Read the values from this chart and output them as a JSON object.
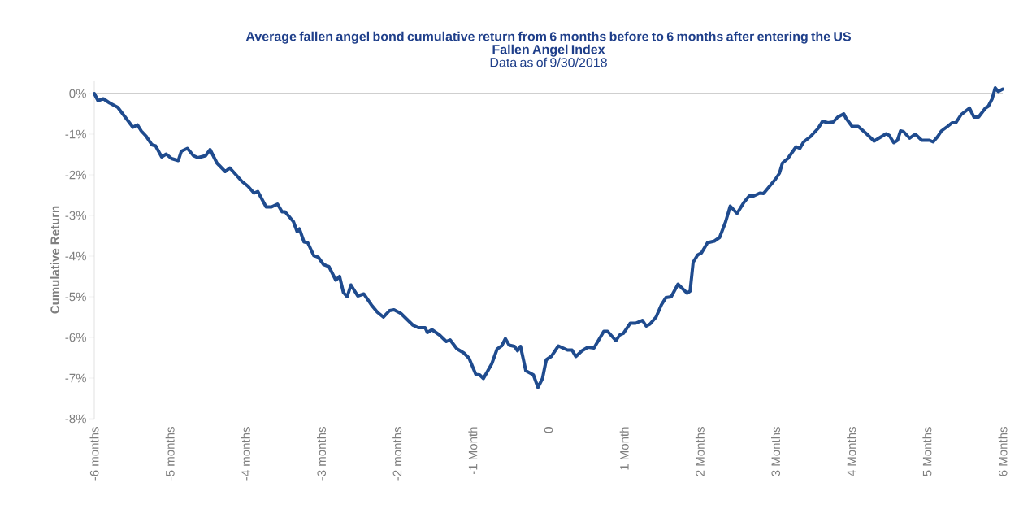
{
  "chart_data": {
    "type": "line",
    "title": "Average fallen angel bond cumulative return from 6 months before to 6 months after entering the US Fallen Angel Index",
    "subtitle": "Data as of 9/30/2018",
    "ylabel": "Cumulative Return",
    "xlim": [
      -6,
      6
    ],
    "ylim": [
      -8,
      0.3
    ],
    "xticks": [
      {
        "value": -6,
        "label": "-6 months"
      },
      {
        "value": -5,
        "label": "-5 months"
      },
      {
        "value": -4,
        "label": "-4 months"
      },
      {
        "value": -3,
        "label": "-3 months"
      },
      {
        "value": -2,
        "label": "-2 months"
      },
      {
        "value": -1,
        "label": "-1 Month"
      },
      0,
      {
        "value": 1,
        "label": "1 Month"
      },
      {
        "value": 2,
        "label": "2 Months"
      },
      {
        "value": 3,
        "label": "3 Months"
      },
      {
        "value": 4,
        "label": "4 Months"
      },
      {
        "value": 5,
        "label": "5 Months"
      },
      {
        "value": 6,
        "label": "6 Months"
      }
    ],
    "yticks": [
      {
        "value": 0,
        "label": "0%"
      },
      {
        "value": -1,
        "label": "-1%"
      },
      {
        "value": -2,
        "label": "-2%"
      },
      {
        "value": -3,
        "label": "-3%"
      },
      {
        "value": -4,
        "label": "-4%"
      },
      {
        "value": -5,
        "label": "-5%"
      },
      {
        "value": -6,
        "label": "-6%"
      },
      {
        "value": -7,
        "label": "-7%"
      },
      {
        "value": -8,
        "label": "-8%"
      }
    ],
    "ref_lines": [
      {
        "axis": "y",
        "value": 0,
        "color": "#bfbfbf"
      }
    ],
    "x": [
      -6,
      -5.95,
      -5.88,
      -5.8,
      -5.69,
      -5.58,
      -5.49,
      -5.43,
      -5.38,
      -5.32,
      -5.24,
      -5.19,
      -5.11,
      -5.05,
      -4.98,
      -4.89,
      -4.85,
      -4.77,
      -4.69,
      -4.63,
      -4.53,
      -4.47,
      -4.38,
      -4.27,
      -4.21,
      -4.05,
      -3.97,
      -3.89,
      -3.84,
      -3.73,
      -3.66,
      -3.58,
      -3.52,
      -3.48,
      -3.37,
      -3.32,
      -3.29,
      -3.23,
      -3.18,
      -3.1,
      -3.04,
      -2.97,
      -2.9,
      -2.81,
      -2.76,
      -2.71,
      -2.66,
      -2.61,
      -2.52,
      -2.44,
      -2.34,
      -2.26,
      -2.18,
      -2.1,
      -2.04,
      -1.95,
      -1.79,
      -1.72,
      -1.63,
      -1.6,
      -1.54,
      -1.44,
      -1.35,
      -1.3,
      -1.21,
      -1.12,
      -1.05,
      -0.96,
      -0.91,
      -0.86,
      -0.75,
      -0.68,
      -0.62,
      -0.57,
      -0.52,
      -0.45,
      -0.41,
      -0.37,
      -0.3,
      -0.2,
      -0.14,
      -0.08,
      -0.03,
      0.04,
      0.13,
      0.25,
      0.31,
      0.36,
      0.44,
      0.52,
      0.6,
      0.73,
      0.78,
      0.89,
      0.94,
      0.99,
      1.08,
      1.15,
      1.24,
      1.29,
      1.34,
      1.42,
      1.49,
      1.55,
      1.62,
      1.71,
      1.83,
      1.87,
      1.91,
      1.97,
      2.02,
      2.1,
      2.19,
      2.26,
      2.34,
      2.4,
      2.49,
      2.58,
      2.65,
      2.71,
      2.79,
      2.84,
      2.92,
      3.0,
      3.05,
      3.09,
      3.16,
      3.27,
      3.32,
      3.37,
      3.46,
      3.53,
      3.56,
      3.62,
      3.69,
      3.76,
      3.82,
      3.9,
      3.93,
      4.01,
      4.09,
      4.2,
      4.3,
      4.38,
      4.46,
      4.5,
      4.56,
      4.61,
      4.65,
      4.69,
      4.77,
      4.82,
      4.85,
      4.93,
      5.03,
      5.08,
      5.14,
      5.19,
      5.27,
      5.33,
      5.38,
      5.45,
      5.56,
      5.62,
      5.68,
      5.77,
      5.81,
      5.86,
      5.9,
      5.94,
      6.0
    ],
    "series": [
      {
        "color": "#1f4b8e",
        "values": [
          0,
          -0.18,
          -0.13,
          -0.23,
          -0.34,
          -0.61,
          -0.83,
          -0.77,
          -0.92,
          -1.04,
          -1.26,
          -1.29,
          -1.56,
          -1.49,
          -1.6,
          -1.65,
          -1.42,
          -1.35,
          -1.53,
          -1.58,
          -1.53,
          -1.38,
          -1.71,
          -1.92,
          -1.83,
          -2.16,
          -2.28,
          -2.45,
          -2.41,
          -2.79,
          -2.79,
          -2.72,
          -2.91,
          -2.91,
          -3.15,
          -3.4,
          -3.33,
          -3.65,
          -3.67,
          -3.99,
          -4.03,
          -4.21,
          -4.26,
          -4.59,
          -4.5,
          -4.89,
          -5.0,
          -4.71,
          -4.98,
          -4.93,
          -5.2,
          -5.38,
          -5.5,
          -5.34,
          -5.32,
          -5.41,
          -5.7,
          -5.76,
          -5.76,
          -5.88,
          -5.81,
          -5.94,
          -6.1,
          -6.06,
          -6.28,
          -6.38,
          -6.51,
          -6.91,
          -6.92,
          -7.01,
          -6.65,
          -6.29,
          -6.21,
          -6.03,
          -6.19,
          -6.22,
          -6.33,
          -6.22,
          -6.82,
          -6.92,
          -7.23,
          -7.01,
          -6.55,
          -6.46,
          -6.21,
          -6.31,
          -6.31,
          -6.47,
          -6.33,
          -6.24,
          -6.26,
          -5.85,
          -5.85,
          -6.08,
          -5.94,
          -5.9,
          -5.65,
          -5.65,
          -5.58,
          -5.72,
          -5.67,
          -5.5,
          -5.2,
          -5.02,
          -5.0,
          -4.69,
          -4.91,
          -4.86,
          -4.15,
          -3.97,
          -3.92,
          -3.67,
          -3.63,
          -3.54,
          -3.15,
          -2.77,
          -2.95,
          -2.68,
          -2.52,
          -2.52,
          -2.45,
          -2.46,
          -2.28,
          -2.1,
          -1.96,
          -1.71,
          -1.6,
          -1.31,
          -1.35,
          -1.19,
          -1.06,
          -0.92,
          -0.86,
          -0.68,
          -0.72,
          -0.7,
          -0.58,
          -0.5,
          -0.61,
          -0.81,
          -0.81,
          -0.99,
          -1.17,
          -1.08,
          -0.99,
          -1.03,
          -1.21,
          -1.15,
          -0.92,
          -0.94,
          -1.1,
          -1.03,
          -1.01,
          -1.15,
          -1.15,
          -1.19,
          -1.06,
          -0.92,
          -0.81,
          -0.72,
          -0.72,
          -0.52,
          -0.36,
          -0.58,
          -0.58,
          -0.36,
          -0.31,
          -0.13,
          0.14,
          0.05,
          0.11
        ]
      }
    ]
  }
}
